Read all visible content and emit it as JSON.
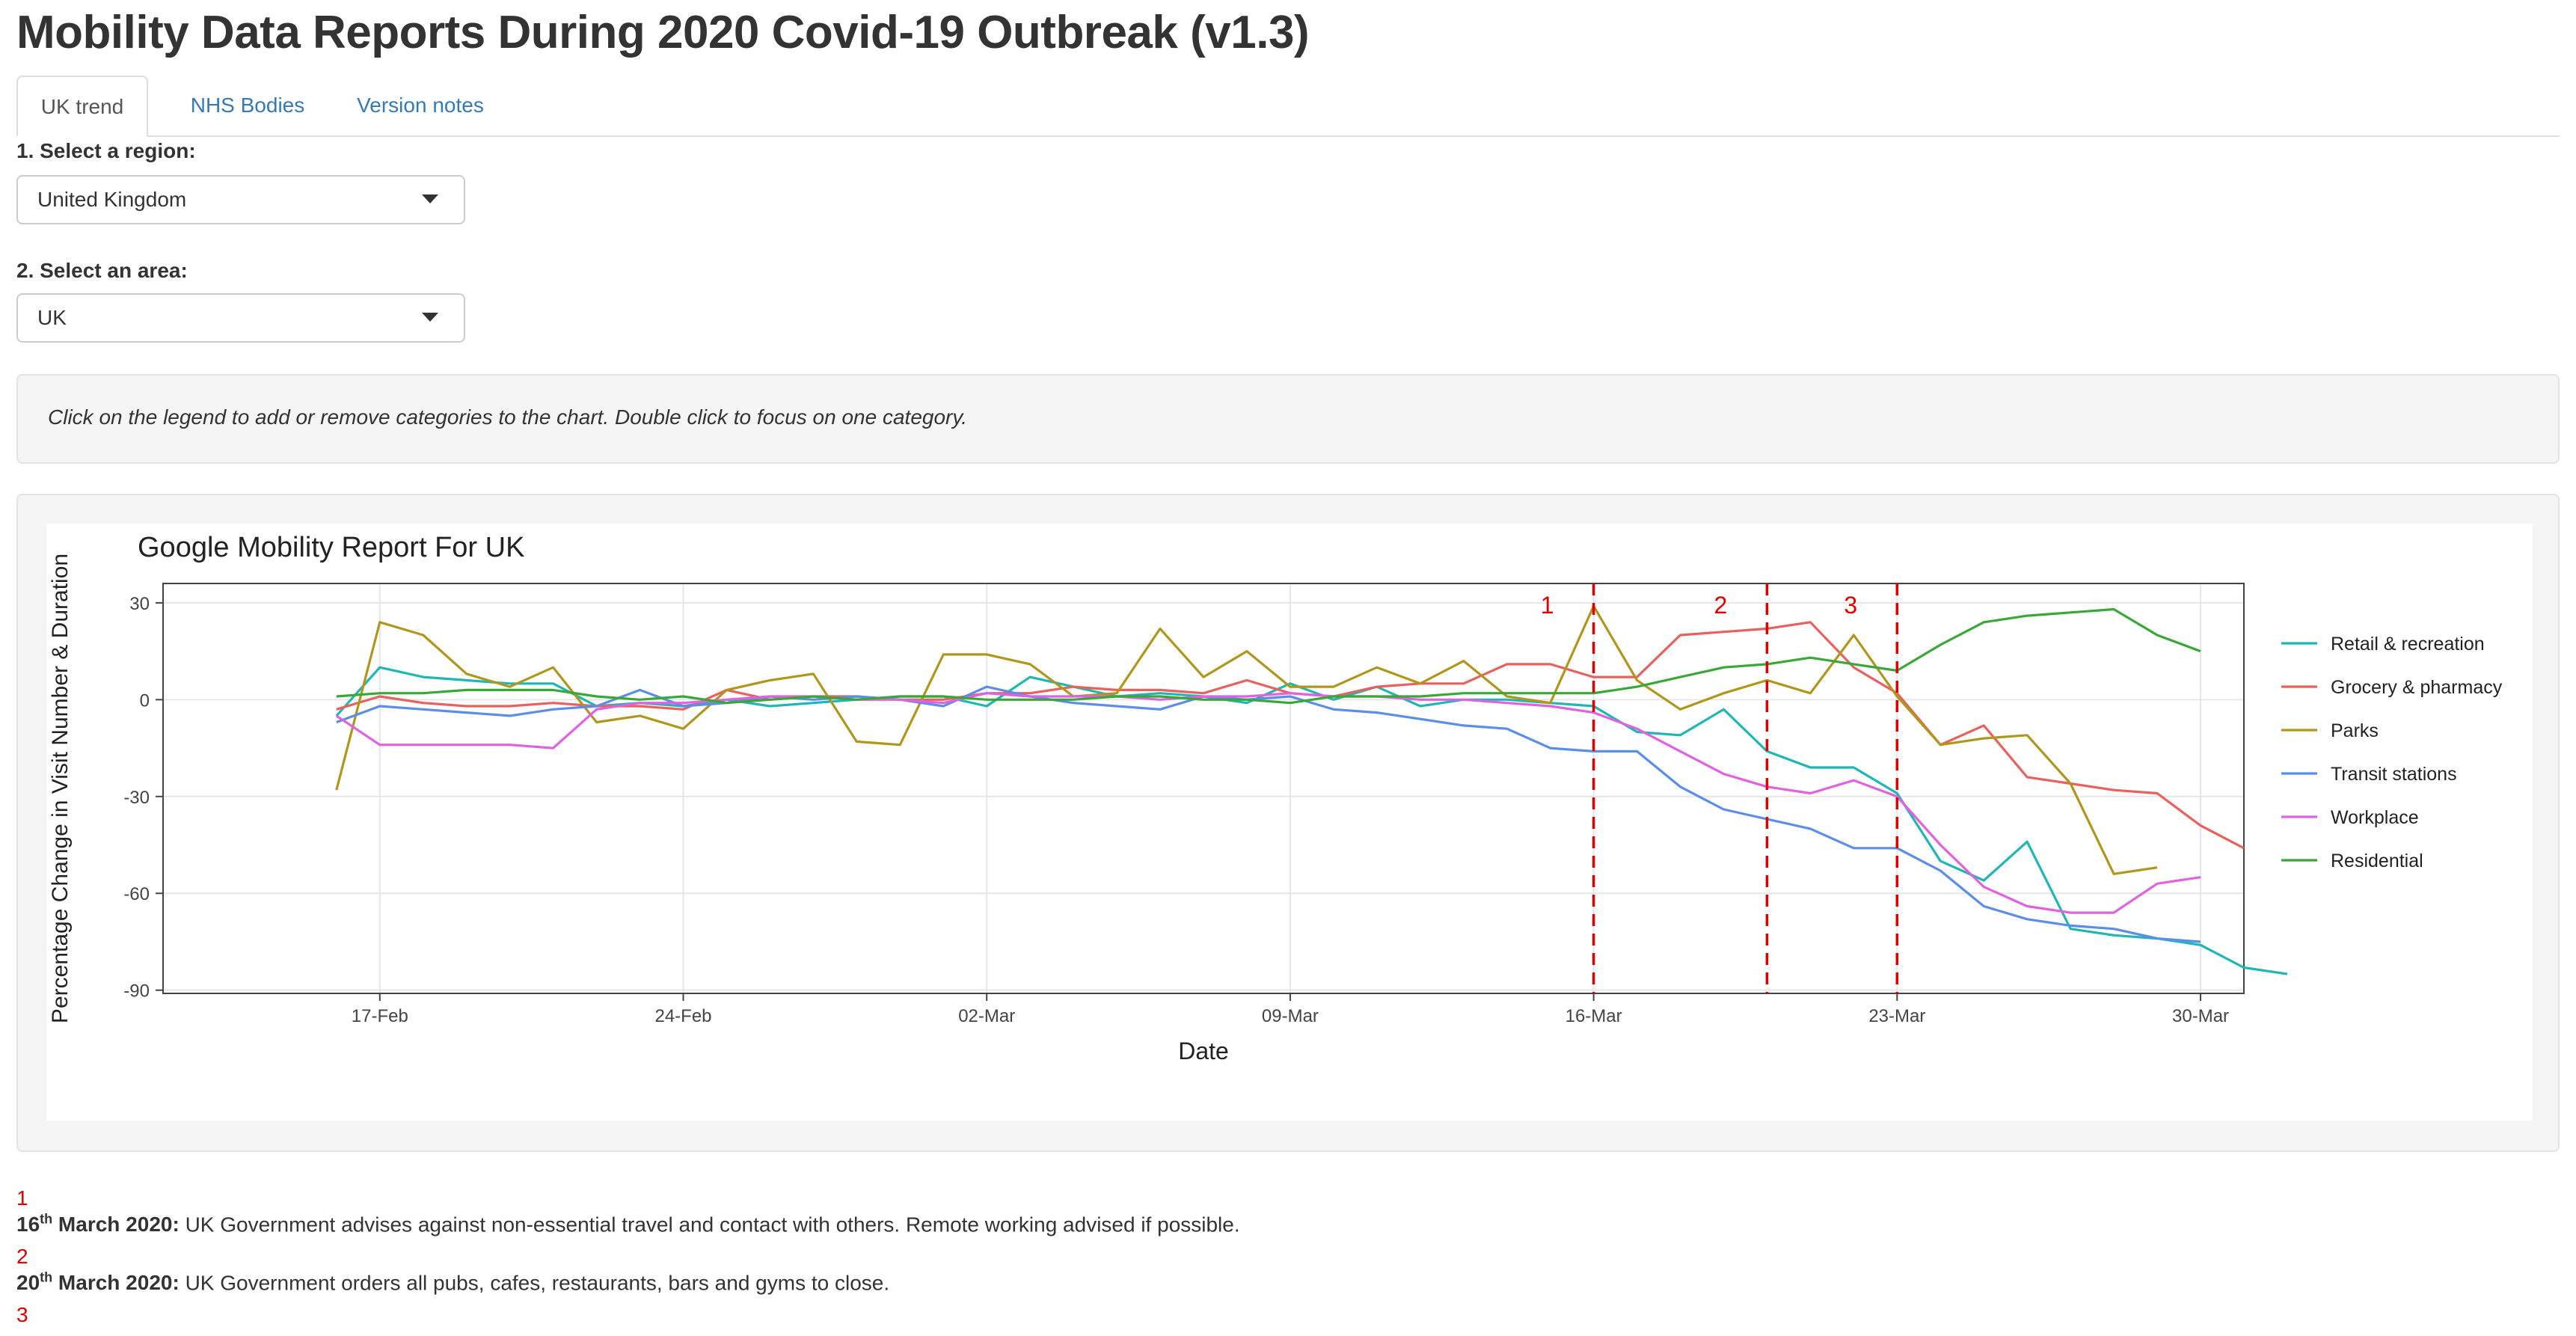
{
  "page": {
    "title": "Mobility Data Reports During 2020 Covid-19 Outbreak (v1.3)"
  },
  "tabs": [
    {
      "label": "UK trend",
      "active": true
    },
    {
      "label": "NHS Bodies",
      "active": false
    },
    {
      "label": "Version notes",
      "active": false
    }
  ],
  "region": {
    "label": "1. Select a region:",
    "value": "United Kingdom"
  },
  "area": {
    "label": "2. Select an area:",
    "value": "UK"
  },
  "help": {
    "text": "Click on the legend to add or remove categories to the chart. Double click to focus on one category."
  },
  "colors": {
    "accent": "#337ab7",
    "event_line": "#e00000"
  },
  "chart_data": {
    "type": "line",
    "title": "Google Mobility Report For UK",
    "xlabel": "Date",
    "ylabel": "Percentage Change in Visit Number & Duration",
    "x_start": "2020-02-16",
    "x_end": "2020-03-29",
    "x_range": [
      "2020-02-12",
      "2020-03-31"
    ],
    "ylim": [
      -91,
      36
    ],
    "yticks": [
      30,
      0,
      -30,
      -60,
      -90
    ],
    "xtick_dates": [
      "2020-02-17",
      "2020-02-24",
      "2020-03-02",
      "2020-03-09",
      "2020-03-16",
      "2020-03-23",
      "2020-03-30"
    ],
    "xtick_labels": [
      "17-Feb",
      "24-Feb",
      "02-Mar",
      "09-Mar",
      "16-Mar",
      "23-Mar",
      "30-Mar"
    ],
    "grid": true,
    "legend_position": "right",
    "events": [
      {
        "label": "1",
        "date": "2020-03-16"
      },
      {
        "label": "2",
        "date": "2020-03-20"
      },
      {
        "label": "3",
        "date": "2020-03-23"
      }
    ],
    "series": [
      {
        "name": "Retail & recreation",
        "color": "#1fb7b5",
        "values": [
          -5,
          10,
          7,
          6,
          5,
          5,
          -2,
          -1,
          -2,
          0,
          -2,
          -1,
          0,
          1,
          1,
          -2,
          7,
          4,
          1,
          2,
          1,
          -1,
          5,
          0,
          4,
          -2,
          0,
          0,
          -1,
          -2,
          -10,
          -11,
          -3,
          -16,
          -21,
          -21,
          -29,
          -50,
          -56,
          -44,
          -71,
          -73,
          -74,
          -76,
          -83,
          -85
        ]
      },
      {
        "name": "Grocery & pharmacy",
        "color": "#e8615c",
        "values": [
          -3,
          1,
          -1,
          -2,
          -2,
          -1,
          -2,
          -2,
          -3,
          3,
          0,
          1,
          1,
          0,
          0,
          2,
          2,
          4,
          3,
          3,
          2,
          6,
          2,
          1,
          4,
          5,
          5,
          11,
          11,
          7,
          7,
          20,
          21,
          22,
          24,
          10,
          2,
          -14,
          -8,
          -24,
          -26,
          -28,
          -29,
          -39,
          -46
        ]
      },
      {
        "name": "Parks",
        "color": "#b0971c",
        "values": [
          -28,
          24,
          20,
          8,
          4,
          10,
          -7,
          -5,
          -9,
          3,
          6,
          8,
          -13,
          -14,
          14,
          14,
          11,
          1,
          2,
          22,
          7,
          15,
          4,
          4,
          10,
          5,
          12,
          1,
          -1,
          29,
          6,
          -3,
          2,
          6,
          2,
          20,
          1,
          -14,
          -12,
          -11,
          -26,
          -54,
          -52
        ]
      },
      {
        "name": "Transit stations",
        "color": "#5b8ee8",
        "values": [
          -7,
          -2,
          -3,
          -4,
          -5,
          -3,
          -2,
          3,
          -2,
          -1,
          1,
          0,
          1,
          0,
          -2,
          4,
          1,
          -1,
          -2,
          -3,
          1,
          0,
          1,
          -3,
          -4,
          -6,
          -8,
          -9,
          -15,
          -16,
          -16,
          -27,
          -34,
          -37,
          -40,
          -46,
          -46,
          -53,
          -64,
          -68,
          -70,
          -71,
          -74,
          -75
        ]
      },
      {
        "name": "Workplace",
        "color": "#e062e0",
        "values": [
          -5,
          -14,
          -14,
          -14,
          -14,
          -15,
          -3,
          -1,
          -1,
          0,
          1,
          1,
          0,
          0,
          -1,
          2,
          1,
          1,
          1,
          0,
          1,
          1,
          2,
          1,
          1,
          0,
          0,
          -1,
          -2,
          -4,
          -9,
          -16,
          -23,
          -27,
          -29,
          -25,
          -30,
          -45,
          -58,
          -64,
          -66,
          -66,
          -57,
          -55
        ]
      },
      {
        "name": "Residential",
        "color": "#3aa837",
        "values": [
          1,
          2,
          2,
          3,
          3,
          3,
          1,
          0,
          1,
          -1,
          0,
          1,
          0,
          1,
          1,
          0,
          0,
          0,
          1,
          1,
          0,
          0,
          -1,
          1,
          1,
          1,
          2,
          2,
          2,
          2,
          4,
          7,
          10,
          11,
          13,
          11,
          9,
          17,
          24,
          26,
          27,
          28,
          20,
          15
        ]
      }
    ]
  },
  "notes": [
    {
      "num": "1",
      "date_day": "16",
      "date_suffix": "th",
      "date_rest": " March 2020:",
      "text": " UK Government advises against non-essential travel and contact with others. Remote working advised if possible."
    },
    {
      "num": "2",
      "date_day": "20",
      "date_suffix": "th",
      "date_rest": " March 2020:",
      "text": " UK Government orders all pubs, cafes, restaurants, bars and gyms to close."
    },
    {
      "num": "3"
    }
  ]
}
